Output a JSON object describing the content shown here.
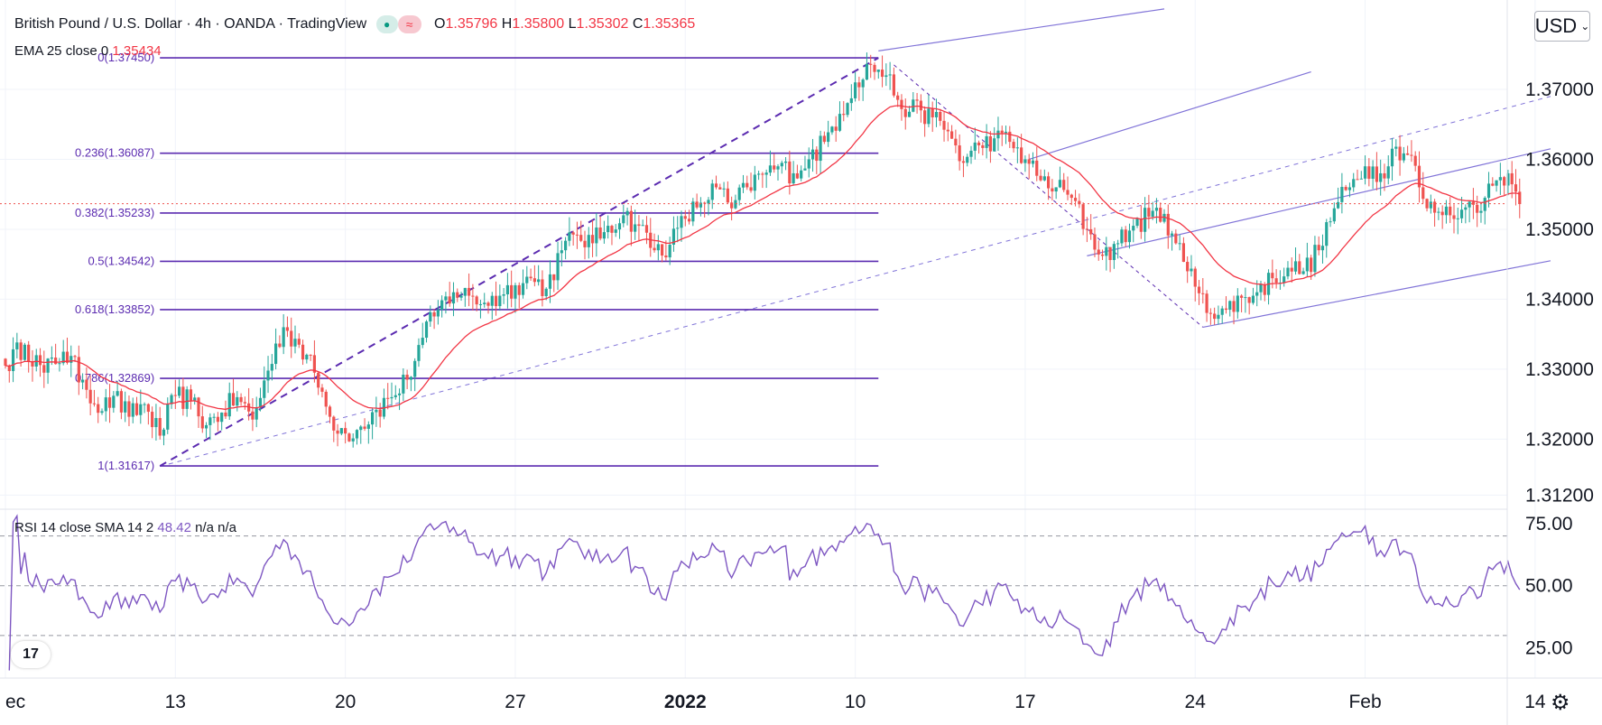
{
  "header": {
    "symbol": "British Pound / U.S. Dollar",
    "interval": "4h",
    "exchange": "OANDA",
    "platform": "TradingView",
    "open_label": "O",
    "open": "1.35796",
    "high_label": "H",
    "high": "1.35800",
    "low_label": "L",
    "low": "1.35302",
    "close_label": "C",
    "close": "1.35365",
    "ema_label": "EMA 25 close 0",
    "ema_value": "1.35434"
  },
  "currency_button": "USD",
  "rsi_legend": {
    "label": "RSI 14 close SMA 14 2",
    "value": "48.42",
    "na1": "n/a",
    "na2": "n/a"
  },
  "colors": {
    "up": "#26a69a",
    "down": "#ef5350",
    "ema": "#f23645",
    "fib": "#5b2bb0",
    "channel": "#8174d8",
    "rsi": "#7e57c2"
  },
  "chart_data": [
    {
      "type": "candlestick",
      "title": "British Pound / U.S. Dollar, 4h, OANDA",
      "y_axis": {
        "ylim": [
          1.3105,
          1.382
        ],
        "ticks": [
          "1.37000",
          "1.36000",
          "1.35000",
          "1.34000",
          "1.33000",
          "1.32000",
          "1.31200"
        ],
        "tick_values": [
          1.37,
          1.36,
          1.35,
          1.34,
          1.33,
          1.32,
          1.312
        ]
      },
      "x_axis": {
        "labels": [
          "ec",
          "13",
          "20",
          "27",
          "2022",
          "10",
          "17",
          "24",
          "Feb",
          "14"
        ],
        "label_index": [
          0,
          44,
          88,
          132,
          176,
          220,
          264,
          308,
          352,
          396
        ]
      },
      "price_anchors": [
        [
          0,
          1.3305
        ],
        [
          5,
          1.3335
        ],
        [
          10,
          1.3295
        ],
        [
          15,
          1.3325
        ],
        [
          20,
          1.3285
        ],
        [
          25,
          1.324
        ],
        [
          28,
          1.3262
        ],
        [
          32,
          1.3232
        ],
        [
          36,
          1.325
        ],
        [
          40,
          1.3205
        ],
        [
          44,
          1.3262
        ],
        [
          48,
          1.3255
        ],
        [
          52,
          1.322
        ],
        [
          56,
          1.3238
        ],
        [
          60,
          1.326
        ],
        [
          64,
          1.3228
        ],
        [
          68,
          1.3298
        ],
        [
          72,
          1.336
        ],
        [
          76,
          1.3335
        ],
        [
          80,
          1.3295
        ],
        [
          84,
          1.3232
        ],
        [
          88,
          1.3208
        ],
        [
          92,
          1.3218
        ],
        [
          96,
          1.3242
        ],
        [
          100,
          1.326
        ],
        [
          104,
          1.3285
        ],
        [
          108,
          1.3345
        ],
        [
          112,
          1.3385
        ],
        [
          116,
          1.341
        ],
        [
          120,
          1.3405
        ],
        [
          124,
          1.3395
        ],
        [
          128,
          1.3405
        ],
        [
          132,
          1.342
        ],
        [
          136,
          1.343
        ],
        [
          140,
          1.3415
        ],
        [
          144,
          1.347
        ],
        [
          148,
          1.3492
        ],
        [
          152,
          1.348
        ],
        [
          156,
          1.3505
        ],
        [
          160,
          1.352
        ],
        [
          164,
          1.3505
        ],
        [
          168,
          1.347
        ],
        [
          172,
          1.3478
        ],
        [
          176,
          1.3515
        ],
        [
          180,
          1.3538
        ],
        [
          184,
          1.356
        ],
        [
          188,
          1.353
        ],
        [
          192,
          1.356
        ],
        [
          196,
          1.3578
        ],
        [
          200,
          1.359
        ],
        [
          204,
          1.358
        ],
        [
          208,
          1.36
        ],
        [
          212,
          1.3625
        ],
        [
          216,
          1.3665
        ],
        [
          220,
          1.371
        ],
        [
          224,
          1.3735
        ],
        [
          228,
          1.372
        ],
        [
          231,
          1.3685
        ],
        [
          234,
          1.3668
        ],
        [
          237,
          1.367
        ],
        [
          240,
          1.366
        ],
        [
          244,
          1.364
        ],
        [
          248,
          1.3595
        ],
        [
          252,
          1.362
        ],
        [
          256,
          1.363
        ],
        [
          260,
          1.3625
        ],
        [
          264,
          1.36
        ],
        [
          268,
          1.357
        ],
        [
          272,
          1.356
        ],
        [
          276,
          1.3545
        ],
        [
          280,
          1.35
        ],
        [
          284,
          1.3462
        ],
        [
          288,
          1.348
        ],
        [
          292,
          1.3505
        ],
        [
          296,
          1.3518
        ],
        [
          300,
          1.3522
        ],
        [
          303,
          1.348
        ],
        [
          306,
          1.344
        ],
        [
          310,
          1.3408
        ],
        [
          313,
          1.3372
        ],
        [
          316,
          1.3385
        ],
        [
          320,
          1.3402
        ],
        [
          324,
          1.341
        ],
        [
          328,
          1.343
        ],
        [
          332,
          1.3445
        ],
        [
          336,
          1.344
        ],
        [
          340,
          1.347
        ],
        [
          344,
          1.353
        ],
        [
          348,
          1.356
        ],
        [
          352,
          1.359
        ],
        [
          356,
          1.358
        ],
        [
          360,
          1.3618
        ],
        [
          364,
          1.3605
        ],
        [
          366,
          1.356
        ],
        [
          368,
          1.353
        ],
        [
          371,
          1.3525
        ],
        [
          374,
          1.352
        ],
        [
          377,
          1.3528
        ],
        [
          380,
          1.3535
        ],
        [
          383,
          1.3545
        ],
        [
          386,
          1.357
        ],
        [
          389,
          1.358
        ],
        [
          392,
          1.3536
        ]
      ],
      "ema": {
        "name": "EMA 25 close 0",
        "period": 25
      },
      "price_line": 1.35365,
      "fibonacci": {
        "levels": [
          {
            "label": "0.236(1.36087)",
            "value": 1.36087
          },
          {
            "label": "0.382(1.35233)",
            "value": 1.35233
          },
          {
            "label": "0.5(1.34542)",
            "value": 1.34542
          },
          {
            "label": "0.618(1.33852)",
            "value": 1.33852
          },
          {
            "label": "0.786(1.32869)",
            "value": 1.32869
          },
          {
            "label": "1(1.31617)",
            "value": 1.31617
          },
          {
            "label": "0(1.37450)",
            "value": 1.3745
          }
        ],
        "start_index": 40,
        "end_index": 226
      },
      "trend_lines": [
        {
          "style": "dashed",
          "from": [
            40,
            1.31617
          ],
          "to": [
            226,
            1.3745
          ]
        },
        {
          "style": "thin-dashed",
          "from": [
            230,
            1.3735
          ],
          "to": [
            310,
            1.336
          ]
        }
      ],
      "channels": [
        {
          "name": "upper rising channel",
          "base": [
            [
              40,
              1.3161
            ],
            [
              400,
              1.369
            ]
          ],
          "upper": [
            [
              226,
              1.3755
            ],
            [
              300,
              1.3815
            ]
          ],
          "mid": [
            [
              40,
              1.3161
            ],
            [
              400,
              1.369
            ]
          ]
        },
        {
          "name": "lower rising channel",
          "lines": [
            [
              [
                280,
                1.3462
              ],
              [
                400,
                1.3615
              ]
            ],
            [
              [
                310,
                1.336
              ],
              [
                400,
                1.3455
              ]
            ]
          ]
        }
      ]
    },
    {
      "type": "line",
      "title": "RSI 14 close SMA 14 2",
      "y_axis": {
        "ylim": [
          14,
          80
        ],
        "ticks": [
          "75.00",
          "50.00",
          "25.00"
        ],
        "tick_values": [
          75,
          50,
          25
        ]
      },
      "guide_lines": [
        70,
        50,
        30
      ],
      "last_value": 48.42
    }
  ]
}
